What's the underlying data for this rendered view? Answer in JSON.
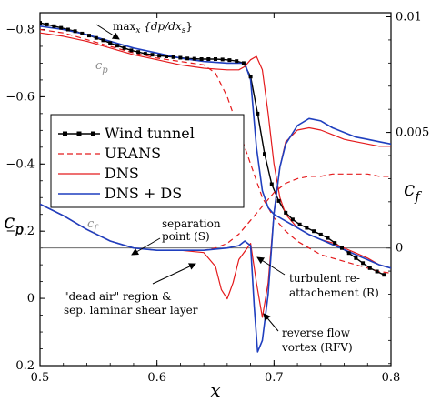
{
  "chart_data": {
    "type": "line",
    "x_axis": {
      "label": "x",
      "range": [
        0.5,
        0.8
      ],
      "ticks": [
        0.5,
        0.6,
        0.7,
        0.8
      ],
      "tick_labels": [
        "0.5",
        "0.6",
        "0.7",
        "0.8"
      ]
    },
    "left_axis": {
      "label": "c",
      "label_subscript": "p",
      "range": [
        0.2,
        -0.85
      ],
      "inverted": true,
      "ticks": [
        0.2,
        0,
        -0.2,
        -0.4,
        -0.6,
        -0.8
      ],
      "tick_labels": [
        "0.2",
        "0",
        "−0.2",
        "−0.4",
        "−0.6",
        "−0.8"
      ]
    },
    "right_axis": {
      "label": "c",
      "label_subscript": "f",
      "range": [
        -0.0050888,
        0.0101775
      ],
      "ticks": [
        0,
        0.005,
        0.01
      ],
      "tick_labels": [
        "0",
        "0.005",
        "0.01"
      ]
    },
    "zero_line_cf": 0,
    "legend": {
      "placement": "center-left",
      "entries": [
        "Wind tunnel",
        "URANS",
        "DNS",
        "DNS + DS"
      ]
    },
    "series": [
      {
        "name": "Wind tunnel",
        "quantity": "cp",
        "color": "#000000",
        "style": "solid-markers",
        "x": [
          0.5,
          0.506,
          0.512,
          0.518,
          0.524,
          0.53,
          0.536,
          0.542,
          0.548,
          0.554,
          0.56,
          0.566,
          0.572,
          0.578,
          0.584,
          0.59,
          0.596,
          0.602,
          0.608,
          0.614,
          0.62,
          0.626,
          0.632,
          0.638,
          0.644,
          0.65,
          0.656,
          0.662,
          0.668,
          0.674,
          0.68,
          0.686,
          0.692,
          0.698,
          0.704,
          0.71,
          0.716,
          0.722,
          0.728,
          0.734,
          0.74,
          0.746,
          0.752,
          0.758,
          0.764,
          0.77,
          0.776,
          0.782,
          0.788,
          0.794
        ],
        "y": [
          -0.82,
          -0.815,
          -0.81,
          -0.805,
          -0.8,
          -0.795,
          -0.788,
          -0.782,
          -0.775,
          -0.768,
          -0.76,
          -0.752,
          -0.745,
          -0.738,
          -0.733,
          -0.728,
          -0.725,
          -0.722,
          -0.72,
          -0.718,
          -0.716,
          -0.714,
          -0.713,
          -0.712,
          -0.712,
          -0.712,
          -0.711,
          -0.709,
          -0.706,
          -0.7,
          -0.66,
          -0.55,
          -0.43,
          -0.34,
          -0.29,
          -0.255,
          -0.235,
          -0.22,
          -0.21,
          -0.2,
          -0.19,
          -0.18,
          -0.165,
          -0.15,
          -0.135,
          -0.12,
          -0.105,
          -0.09,
          -0.08,
          -0.07
        ]
      },
      {
        "name": "URANS",
        "quantity": "cp",
        "color": "#e41a1c",
        "style": "dashed",
        "x": [
          0.5,
          0.52,
          0.54,
          0.56,
          0.58,
          0.6,
          0.62,
          0.64,
          0.65,
          0.66,
          0.665,
          0.67,
          0.675,
          0.68,
          0.685,
          0.69,
          0.7,
          0.71,
          0.72,
          0.73,
          0.74,
          0.75,
          0.76,
          0.77,
          0.78,
          0.79,
          0.8
        ],
        "y": [
          -0.8,
          -0.79,
          -0.77,
          -0.75,
          -0.73,
          -0.715,
          -0.705,
          -0.695,
          -0.67,
          -0.6,
          -0.55,
          -0.5,
          -0.45,
          -0.4,
          -0.35,
          -0.3,
          -0.24,
          -0.2,
          -0.17,
          -0.15,
          -0.13,
          -0.12,
          -0.11,
          -0.1,
          -0.09,
          -0.08,
          -0.075
        ]
      },
      {
        "name": "URANS",
        "quantity": "cf",
        "color": "#e41a1c",
        "style": "dashed",
        "x": [
          0.5,
          0.52,
          0.54,
          0.56,
          0.58,
          0.6,
          0.62,
          0.64,
          0.65,
          0.66,
          0.67,
          0.68,
          0.69,
          0.7,
          0.71,
          0.72,
          0.73,
          0.74,
          0.75,
          0.76,
          0.77,
          0.78,
          0.79,
          0.8
        ],
        "y": [
          0.0019,
          0.0014,
          0.0008,
          0.0003,
          0,
          -0.0001,
          -0.0001,
          -0.0001,
          0,
          0.0002,
          0.0006,
          0.0012,
          0.0018,
          0.0024,
          0.0028,
          0.003,
          0.0031,
          0.0031,
          0.0032,
          0.0032,
          0.0032,
          0.0032,
          0.0031,
          0.0031
        ]
      },
      {
        "name": "DNS",
        "quantity": "cp",
        "color": "#e41a1c",
        "style": "solid",
        "x": [
          0.5,
          0.52,
          0.54,
          0.56,
          0.58,
          0.6,
          0.62,
          0.64,
          0.66,
          0.67,
          0.675,
          0.68,
          0.685,
          0.69,
          0.695,
          0.7,
          0.705,
          0.71,
          0.72,
          0.73,
          0.74,
          0.75,
          0.76,
          0.77,
          0.78,
          0.79,
          0.8
        ],
        "y": [
          -0.79,
          -0.78,
          -0.765,
          -0.745,
          -0.725,
          -0.71,
          -0.695,
          -0.685,
          -0.68,
          -0.68,
          -0.69,
          -0.71,
          -0.72,
          -0.68,
          -0.55,
          -0.4,
          -0.3,
          -0.25,
          -0.21,
          -0.19,
          -0.175,
          -0.165,
          -0.15,
          -0.135,
          -0.12,
          -0.1,
          -0.09
        ]
      },
      {
        "name": "DNS",
        "quantity": "cf",
        "color": "#e41a1c",
        "style": "solid",
        "x": [
          0.5,
          0.52,
          0.54,
          0.56,
          0.58,
          0.6,
          0.62,
          0.64,
          0.65,
          0.655,
          0.66,
          0.665,
          0.67,
          0.68,
          0.685,
          0.69,
          0.695,
          0.7,
          0.705,
          0.71,
          0.72,
          0.73,
          0.74,
          0.75,
          0.76,
          0.77,
          0.78,
          0.79,
          0.8
        ],
        "y": [
          0.0019,
          0.0014,
          0.0008,
          0.0003,
          0,
          -0.0001,
          -0.0001,
          -0.0002,
          -0.0008,
          -0.0018,
          -0.0022,
          -0.0015,
          -0.0005,
          0.0002,
          -0.0015,
          -0.003,
          -0.0015,
          0.0015,
          0.0035,
          0.0046,
          0.0051,
          0.0052,
          0.0051,
          0.0049,
          0.0047,
          0.0046,
          0.0045,
          0.0044,
          0.0044
        ]
      },
      {
        "name": "DNS + DS",
        "quantity": "cp",
        "color": "#1f3fbf",
        "style": "solid",
        "x": [
          0.5,
          0.52,
          0.54,
          0.56,
          0.58,
          0.6,
          0.62,
          0.64,
          0.66,
          0.67,
          0.675,
          0.68,
          0.685,
          0.69,
          0.695,
          0.7,
          0.71,
          0.72,
          0.73,
          0.74,
          0.75,
          0.76,
          0.77,
          0.78,
          0.79,
          0.8
        ],
        "y": [
          -0.81,
          -0.8,
          -0.785,
          -0.765,
          -0.745,
          -0.73,
          -0.715,
          -0.705,
          -0.7,
          -0.7,
          -0.7,
          -0.65,
          -0.45,
          -0.32,
          -0.27,
          -0.25,
          -0.23,
          -0.21,
          -0.19,
          -0.175,
          -0.16,
          -0.145,
          -0.13,
          -0.115,
          -0.1,
          -0.09
        ]
      },
      {
        "name": "DNS + DS",
        "quantity": "cf",
        "color": "#1f3fbf",
        "style": "solid",
        "x": [
          0.5,
          0.52,
          0.54,
          0.56,
          0.58,
          0.6,
          0.62,
          0.64,
          0.66,
          0.67,
          0.675,
          0.68,
          0.683,
          0.686,
          0.69,
          0.695,
          0.7,
          0.705,
          0.71,
          0.72,
          0.73,
          0.74,
          0.75,
          0.76,
          0.77,
          0.78,
          0.79,
          0.8
        ],
        "y": [
          0.0019,
          0.0014,
          0.0008,
          0.0003,
          0,
          -0.0001,
          -0.0001,
          -0.0001,
          0,
          0.0001,
          0.0003,
          0.0001,
          -0.0025,
          -0.0045,
          -0.004,
          -0.002,
          0.0015,
          0.0035,
          0.0045,
          0.0053,
          0.0056,
          0.0055,
          0.0052,
          0.005,
          0.0048,
          0.0047,
          0.0046,
          0.0045
        ]
      }
    ],
    "curve_labels": [
      {
        "text": "c",
        "sub": "p"
      },
      {
        "text": "c",
        "sub": "f"
      }
    ],
    "annotations": [
      {
        "id": "max",
        "lines": [
          "max"
        ],
        "sub": "x",
        "rest": " {dp/dx",
        "rest_sub": "s",
        "tail": "}"
      },
      {
        "id": "sep",
        "lines": [
          "separation",
          "point (S)"
        ]
      },
      {
        "id": "deadair",
        "lines": [
          "\"dead air\" region &",
          "sep. laminar shear layer"
        ]
      },
      {
        "id": "reattach",
        "lines": [
          "turbulent re-",
          "attachement (R)"
        ]
      },
      {
        "id": "rfv",
        "lines": [
          "reverse flow",
          "vortex (RFV)"
        ]
      }
    ]
  }
}
